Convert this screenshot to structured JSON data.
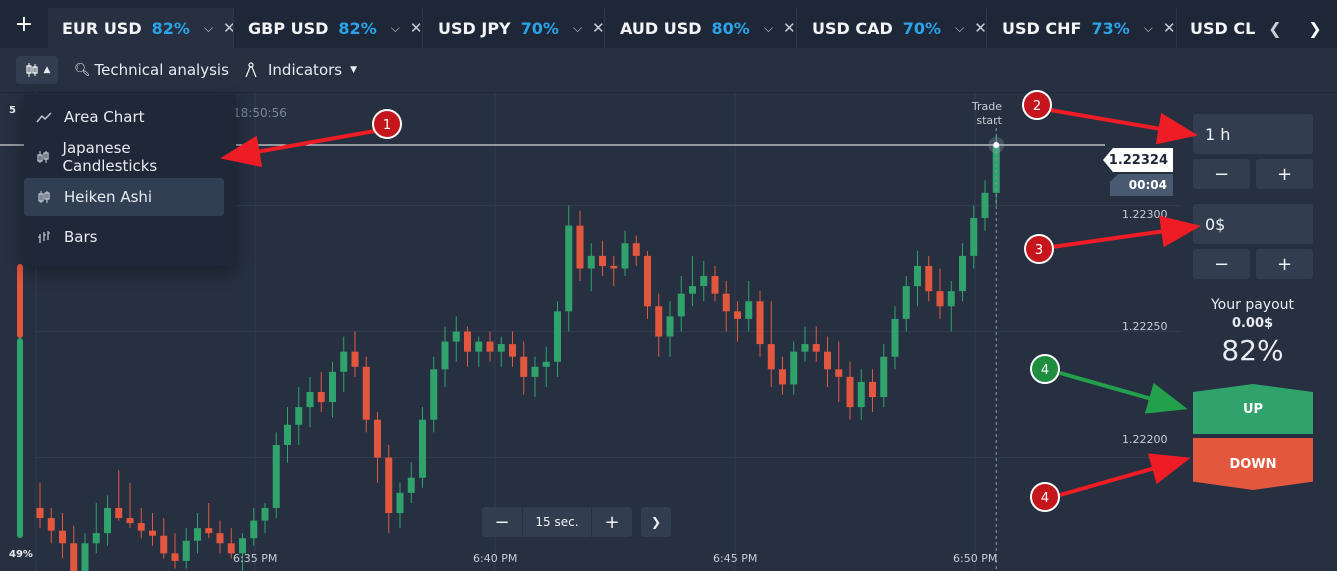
{
  "tabs": [
    {
      "symbol": "EUR USD",
      "payout": "82%"
    },
    {
      "symbol": "GBP USD",
      "payout": "82%"
    },
    {
      "symbol": "USD JPY",
      "payout": "70%"
    },
    {
      "symbol": "AUD USD",
      "payout": "80%"
    },
    {
      "symbol": "USD CAD",
      "payout": "70%"
    },
    {
      "symbol": "USD CHF",
      "payout": "73%"
    },
    {
      "symbol": "USD CLP",
      "payout": ""
    }
  ],
  "add_tab": "+",
  "toolbar": {
    "technical_analysis": "Technical analysis",
    "indicators": "Indicators"
  },
  "chart_type_menu": {
    "items": [
      "Area Chart",
      "Japanese Candlesticks",
      "Heiken Ashi",
      "Bars"
    ],
    "selected": "Heiken Ashi"
  },
  "chart": {
    "clock": "18:50:56",
    "left_scale_top": "5",
    "left_scale_bottom": "49%",
    "trade_start_line1": "Trade",
    "trade_start_line2": "start",
    "current_price": "1.22324",
    "countdown": "00:04",
    "y_ticks": [
      "1.22300",
      "1.22250",
      "1.22200"
    ],
    "x_ticks": [
      "6:35 PM",
      "6:40 PM",
      "6:45 PM",
      "6:50 PM"
    ],
    "zoom_label": "15 sec."
  },
  "chart_data": {
    "type": "candlestick",
    "ylim": [
      1.22155,
      1.22345
    ],
    "y_ticks": [
      1.223,
      1.2225,
      1.222
    ],
    "x_ticks": [
      "6:35 PM",
      "6:40 PM",
      "6:45 PM",
      "6:50 PM"
    ],
    "current_price": 1.22324,
    "candles": [
      {
        "o": 1.2218,
        "h": 1.2219,
        "l": 1.22172,
        "c": 1.22176
      },
      {
        "o": 1.22176,
        "h": 1.2218,
        "l": 1.22166,
        "c": 1.22171
      },
      {
        "o": 1.22171,
        "h": 1.22178,
        "l": 1.2216,
        "c": 1.22166
      },
      {
        "o": 1.22166,
        "h": 1.22173,
        "l": 1.2215,
        "c": 1.22155
      },
      {
        "o": 1.22155,
        "h": 1.2217,
        "l": 1.2215,
        "c": 1.22166
      },
      {
        "o": 1.22166,
        "h": 1.22182,
        "l": 1.22162,
        "c": 1.2217
      },
      {
        "o": 1.2217,
        "h": 1.22185,
        "l": 1.22165,
        "c": 1.2218
      },
      {
        "o": 1.2218,
        "h": 1.22195,
        "l": 1.22175,
        "c": 1.22176
      },
      {
        "o": 1.22176,
        "h": 1.2219,
        "l": 1.22172,
        "c": 1.22174
      },
      {
        "o": 1.22174,
        "h": 1.2218,
        "l": 1.22168,
        "c": 1.22171
      },
      {
        "o": 1.22171,
        "h": 1.22178,
        "l": 1.22165,
        "c": 1.22169
      },
      {
        "o": 1.22169,
        "h": 1.22176,
        "l": 1.2216,
        "c": 1.22162
      },
      {
        "o": 1.22162,
        "h": 1.2217,
        "l": 1.22156,
        "c": 1.22159
      },
      {
        "o": 1.22159,
        "h": 1.22172,
        "l": 1.22156,
        "c": 1.22167
      },
      {
        "o": 1.22167,
        "h": 1.22178,
        "l": 1.22162,
        "c": 1.22172
      },
      {
        "o": 1.22172,
        "h": 1.22182,
        "l": 1.22168,
        "c": 1.2217
      },
      {
        "o": 1.2217,
        "h": 1.22175,
        "l": 1.22162,
        "c": 1.22166
      },
      {
        "o": 1.22166,
        "h": 1.22172,
        "l": 1.2216,
        "c": 1.22162
      },
      {
        "o": 1.22162,
        "h": 1.2217,
        "l": 1.22155,
        "c": 1.22168
      },
      {
        "o": 1.22168,
        "h": 1.2218,
        "l": 1.22165,
        "c": 1.22175
      },
      {
        "o": 1.22175,
        "h": 1.22182,
        "l": 1.2217,
        "c": 1.2218
      },
      {
        "o": 1.2218,
        "h": 1.2221,
        "l": 1.22176,
        "c": 1.22205
      },
      {
        "o": 1.22205,
        "h": 1.2222,
        "l": 1.22198,
        "c": 1.22213
      },
      {
        "o": 1.22213,
        "h": 1.22228,
        "l": 1.22205,
        "c": 1.2222
      },
      {
        "o": 1.2222,
        "h": 1.22232,
        "l": 1.22212,
        "c": 1.22226
      },
      {
        "o": 1.22226,
        "h": 1.22234,
        "l": 1.22218,
        "c": 1.22222
      },
      {
        "o": 1.22222,
        "h": 1.22238,
        "l": 1.22216,
        "c": 1.22234
      },
      {
        "o": 1.22234,
        "h": 1.22248,
        "l": 1.22226,
        "c": 1.22242
      },
      {
        "o": 1.22242,
        "h": 1.2225,
        "l": 1.22232,
        "c": 1.22236
      },
      {
        "o": 1.22236,
        "h": 1.2224,
        "l": 1.2221,
        "c": 1.22215
      },
      {
        "o": 1.22215,
        "h": 1.22218,
        "l": 1.2219,
        "c": 1.222
      },
      {
        "o": 1.222,
        "h": 1.22205,
        "l": 1.2217,
        "c": 1.22178
      },
      {
        "o": 1.22178,
        "h": 1.2219,
        "l": 1.22172,
        "c": 1.22186
      },
      {
        "o": 1.22186,
        "h": 1.22198,
        "l": 1.22182,
        "c": 1.22192
      },
      {
        "o": 1.22192,
        "h": 1.2222,
        "l": 1.22188,
        "c": 1.22215
      },
      {
        "o": 1.22215,
        "h": 1.2224,
        "l": 1.2221,
        "c": 1.22235
      },
      {
        "o": 1.22235,
        "h": 1.22252,
        "l": 1.22228,
        "c": 1.22246
      },
      {
        "o": 1.22246,
        "h": 1.22256,
        "l": 1.22238,
        "c": 1.2225
      },
      {
        "o": 1.2225,
        "h": 1.22252,
        "l": 1.22236,
        "c": 1.22242
      },
      {
        "o": 1.22242,
        "h": 1.22248,
        "l": 1.22236,
        "c": 1.22246
      },
      {
        "o": 1.22246,
        "h": 1.2225,
        "l": 1.22238,
        "c": 1.22242
      },
      {
        "o": 1.22242,
        "h": 1.22248,
        "l": 1.22236,
        "c": 1.22245
      },
      {
        "o": 1.22245,
        "h": 1.2225,
        "l": 1.22236,
        "c": 1.2224
      },
      {
        "o": 1.2224,
        "h": 1.22246,
        "l": 1.22225,
        "c": 1.22232
      },
      {
        "o": 1.22232,
        "h": 1.2224,
        "l": 1.22224,
        "c": 1.22236
      },
      {
        "o": 1.22236,
        "h": 1.22244,
        "l": 1.22228,
        "c": 1.22238
      },
      {
        "o": 1.22238,
        "h": 1.22262,
        "l": 1.22232,
        "c": 1.22258
      },
      {
        "o": 1.22258,
        "h": 1.223,
        "l": 1.2225,
        "c": 1.22292
      },
      {
        "o": 1.22292,
        "h": 1.22298,
        "l": 1.2227,
        "c": 1.22275
      },
      {
        "o": 1.22275,
        "h": 1.22285,
        "l": 1.22266,
        "c": 1.2228
      },
      {
        "o": 1.2228,
        "h": 1.22286,
        "l": 1.22272,
        "c": 1.22276
      },
      {
        "o": 1.22276,
        "h": 1.2228,
        "l": 1.22268,
        "c": 1.22275
      },
      {
        "o": 1.22275,
        "h": 1.2229,
        "l": 1.22272,
        "c": 1.22285
      },
      {
        "o": 1.22285,
        "h": 1.22288,
        "l": 1.22276,
        "c": 1.2228
      },
      {
        "o": 1.2228,
        "h": 1.22282,
        "l": 1.22255,
        "c": 1.2226
      },
      {
        "o": 1.2226,
        "h": 1.22265,
        "l": 1.2224,
        "c": 1.22248
      },
      {
        "o": 1.22248,
        "h": 1.22262,
        "l": 1.2224,
        "c": 1.22256
      },
      {
        "o": 1.22256,
        "h": 1.22272,
        "l": 1.2225,
        "c": 1.22265
      },
      {
        "o": 1.22265,
        "h": 1.2228,
        "l": 1.2226,
        "c": 1.22268
      },
      {
        "o": 1.22268,
        "h": 1.22278,
        "l": 1.22262,
        "c": 1.22272
      },
      {
        "o": 1.22272,
        "h": 1.22276,
        "l": 1.22262,
        "c": 1.22265
      },
      {
        "o": 1.22265,
        "h": 1.2227,
        "l": 1.2225,
        "c": 1.22258
      },
      {
        "o": 1.22258,
        "h": 1.22262,
        "l": 1.22246,
        "c": 1.22255
      },
      {
        "o": 1.22255,
        "h": 1.2227,
        "l": 1.2225,
        "c": 1.22262
      },
      {
        "o": 1.22262,
        "h": 1.22266,
        "l": 1.2224,
        "c": 1.22245
      },
      {
        "o": 1.22245,
        "h": 1.22262,
        "l": 1.22228,
        "c": 1.22235
      },
      {
        "o": 1.22235,
        "h": 1.2224,
        "l": 1.22225,
        "c": 1.22229
      },
      {
        "o": 1.22229,
        "h": 1.22246,
        "l": 1.22225,
        "c": 1.22242
      },
      {
        "o": 1.22242,
        "h": 1.22252,
        "l": 1.22238,
        "c": 1.22245
      },
      {
        "o": 1.22245,
        "h": 1.22252,
        "l": 1.22238,
        "c": 1.22242
      },
      {
        "o": 1.22242,
        "h": 1.22248,
        "l": 1.22228,
        "c": 1.22235
      },
      {
        "o": 1.22235,
        "h": 1.22246,
        "l": 1.22222,
        "c": 1.22232
      },
      {
        "o": 1.22232,
        "h": 1.22238,
        "l": 1.22215,
        "c": 1.2222
      },
      {
        "o": 1.2222,
        "h": 1.22235,
        "l": 1.22215,
        "c": 1.2223
      },
      {
        "o": 1.2223,
        "h": 1.22235,
        "l": 1.22218,
        "c": 1.22224
      },
      {
        "o": 1.22224,
        "h": 1.22245,
        "l": 1.2222,
        "c": 1.2224
      },
      {
        "o": 1.2224,
        "h": 1.2226,
        "l": 1.22235,
        "c": 1.22255
      },
      {
        "o": 1.22255,
        "h": 1.22272,
        "l": 1.2225,
        "c": 1.22268
      },
      {
        "o": 1.22268,
        "h": 1.22282,
        "l": 1.2226,
        "c": 1.22276
      },
      {
        "o": 1.22276,
        "h": 1.2228,
        "l": 1.22262,
        "c": 1.22266
      },
      {
        "o": 1.22266,
        "h": 1.22275,
        "l": 1.22255,
        "c": 1.2226
      },
      {
        "o": 1.2226,
        "h": 1.2227,
        "l": 1.2225,
        "c": 1.22266
      },
      {
        "o": 1.22266,
        "h": 1.22285,
        "l": 1.22262,
        "c": 1.2228
      },
      {
        "o": 1.2228,
        "h": 1.223,
        "l": 1.22275,
        "c": 1.22295
      },
      {
        "o": 1.22295,
        "h": 1.2231,
        "l": 1.2229,
        "c": 1.22305
      },
      {
        "o": 1.22305,
        "h": 1.22328,
        "l": 1.223,
        "c": 1.22324
      }
    ]
  },
  "trade_panel": {
    "time_value": "1 h",
    "amount_value": "0$",
    "minus": "−",
    "plus": "+",
    "payout_label": "Your payout",
    "payout_amount": "0.00$",
    "payout_percent": "82%",
    "up_label": "UP",
    "down_label": "DOWN"
  },
  "annotations": [
    "1",
    "2",
    "3",
    "4",
    "4"
  ],
  "colors": {
    "up": "#2fa36b",
    "down": "#e2573e",
    "accent": "#2aa3e8",
    "marker_red": "#c4161c",
    "marker_green": "#1e8e3e",
    "arrow_red": "#ee1c24",
    "arrow_green": "#22a04b"
  }
}
